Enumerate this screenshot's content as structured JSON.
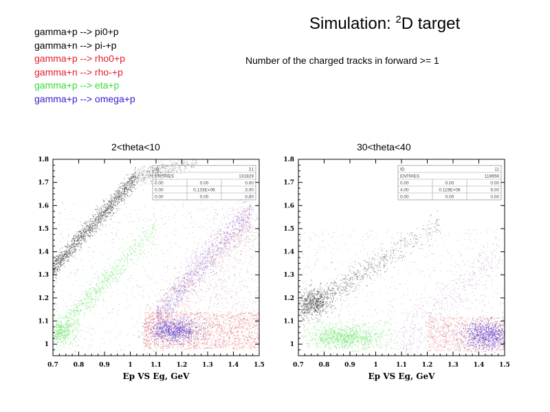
{
  "header": {
    "title_prefix": "Simulation: ",
    "title_sup": "2",
    "title_suffix": "D target",
    "subtitle": "Number of the charged tracks in forward >= 1"
  },
  "legend": [
    {
      "label": "gamma+p --> pi0+p",
      "color": "#000000"
    },
    {
      "label": "gamma+n --> pi-+p",
      "color": "#000000"
    },
    {
      "label": "gamma+p --> rho0+p",
      "color": "#e0202a"
    },
    {
      "label": "gamma+n --> rho-+p",
      "color": "#e0202a"
    },
    {
      "label": "gamma+p --> eta+p",
      "color": "#33dd33"
    },
    {
      "label": "gamma+p --> omega+p",
      "color": "#3322cc"
    }
  ],
  "chart_data": [
    {
      "type": "scatter",
      "title": "2<theta<10",
      "xlabel": "Ep VS Eg, GeV",
      "xlim": [
        0.7,
        1.5
      ],
      "ylim": [
        0.95,
        1.8
      ],
      "xticks": [
        "0.7",
        "0.8",
        "0.9",
        "1",
        "1.1",
        "1.2",
        "1.3",
        "1.4",
        "1.5"
      ],
      "yticks": [
        "1",
        "1.1",
        "1.2",
        "1.3",
        "1.4",
        "1.5",
        "1.6",
        "1.7",
        "1.8"
      ],
      "stats": {
        "id_label": "ID",
        "id_value": "21",
        "entries_label": "ENTRIES",
        "entries_value": "131829",
        "rows": [
          [
            "0.00",
            "0.00",
            "0.00"
          ],
          [
            "0.00",
            "0.133E+06",
            "3.00"
          ],
          [
            "0.00",
            "0.00",
            "0.00"
          ]
        ]
      }
    },
    {
      "type": "scatter",
      "title": "30<theta<40",
      "xlabel": "Ep VS Eg, GeV",
      "xlim": [
        0.7,
        1.5
      ],
      "ylim": [
        0.95,
        1.8
      ],
      "xticks": [
        "0.7",
        "0.8",
        "0.9",
        "1",
        "1.1",
        "1.2",
        "1.3",
        "1.4",
        "1.5"
      ],
      "yticks": [
        "1",
        "1.1",
        "1.2",
        "1.3",
        "1.4",
        "1.5",
        "1.6",
        "1.7",
        "1.8"
      ],
      "stats": {
        "id_label": "ID",
        "id_value": "11",
        "entries_label": "ENTRIES",
        "entries_value": "118656",
        "rows": [
          [
            "0.00",
            "0.00",
            "0.00"
          ],
          [
            "4.00",
            "0.119E+06",
            "9.00"
          ],
          [
            "0.00",
            "0.00",
            "0.00"
          ]
        ]
      }
    }
  ]
}
